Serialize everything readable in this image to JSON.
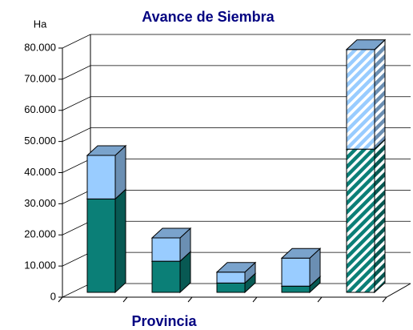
{
  "chart_data": {
    "type": "bar3d_stacked",
    "title": "Avance de Siembra",
    "y_label": "Ha",
    "x_label": "Provincia",
    "categories": [
      null,
      null,
      null,
      null,
      null
    ],
    "series": [
      {
        "color": "#0b7f77",
        "values": [
          30000,
          10000,
          3000,
          2000,
          46000
        ]
      },
      {
        "color": "#99ccff",
        "values": [
          14000,
          7500,
          3500,
          9000,
          32000
        ]
      }
    ],
    "hatched": [
      4
    ],
    "ylim": [
      0,
      80000
    ],
    "yticks": [
      0,
      {
        "value": 10000,
        "label": "10.000"
      },
      {
        "value": 20000,
        "label": "20.000"
      },
      {
        "value": 30000,
        "label": "30.000"
      },
      {
        "value": 40000,
        "label": "40.000"
      },
      {
        "value": 50000,
        "label": "50.000"
      },
      {
        "value": 60000,
        "label": "60.000"
      },
      {
        "value": 70000,
        "label": "70.000"
      },
      {
        "value": 80000,
        "label": "80.000"
      }
    ],
    "grid": true
  }
}
